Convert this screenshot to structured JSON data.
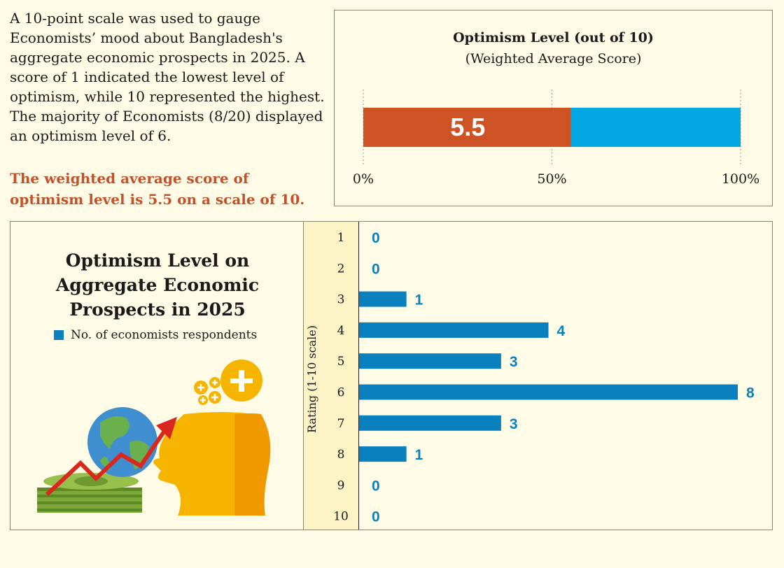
{
  "intro_text": "A 10-point scale was used to gauge Economists’ mood about Bangladesh's aggregate economic prospects in 2025. A score of 1 indicated the lowest level of optimism, while 10 represented the highest. The majority of Economists (8/20) displayed an optimism level of 6.",
  "conclusion_text": "The weighted average score of optimism level is 5.5 on a scale of 10.",
  "colors": {
    "accent_text": "#c3522a",
    "gauge_fill": "#cd5325",
    "gauge_rest": "#00a6e0",
    "bar": "#0a80be",
    "bar_label": "#0a80be"
  },
  "chart_data": [
    {
      "type": "bar",
      "orientation": "horizontal",
      "title": "Optimism Level (out of 10)",
      "subtitle": "(Weighted Average Score)",
      "value": 5.5,
      "value_label": "5.5",
      "scale_max": 10,
      "fill_fraction": 0.55,
      "ticks": [
        "0%",
        "50%",
        "100%"
      ],
      "tick_values": [
        0,
        50,
        100
      ]
    },
    {
      "type": "bar",
      "orientation": "horizontal",
      "title": "Optimism Level on Aggregate Economic Prospects in 2025",
      "legend": [
        "No. of economists respondents"
      ],
      "ylabel": "Rating (1-10 scale)",
      "categories": [
        "1",
        "2",
        "3",
        "4",
        "5",
        "6",
        "7",
        "8",
        "9",
        "10"
      ],
      "values": [
        0,
        0,
        1,
        4,
        3,
        8,
        3,
        1,
        0,
        0
      ],
      "xlim": [
        0,
        8
      ]
    }
  ]
}
